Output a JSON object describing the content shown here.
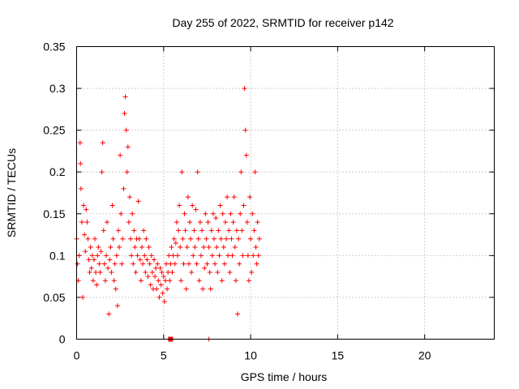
{
  "chart_data": {
    "type": "scatter",
    "title": "Day 255 of 2022, SRMTID for receiver p142",
    "xlabel": "GPS time / hours",
    "ylabel": "SRMTID / TECUs",
    "xlim": [
      0,
      24
    ],
    "ylim": [
      0,
      0.35
    ],
    "xticks": [
      0,
      5,
      10,
      15,
      20
    ],
    "xtick_labels": [
      "0",
      "5",
      "10",
      "15",
      "20"
    ],
    "yticks": [
      0,
      0.05,
      0.1,
      0.15,
      0.2,
      0.25,
      0.3,
      0.35
    ],
    "ytick_labels": [
      "0",
      "0.05",
      "0.1",
      "0.15",
      "0.2",
      "0.25",
      "0.3",
      "0.35"
    ],
    "grid": true,
    "marker": "plus",
    "color": "#ff0000",
    "series": [
      {
        "name": "SRMTID",
        "points": [
          [
            0.0,
            0.12
          ],
          [
            0.05,
            0.09
          ],
          [
            0.1,
            0.07
          ],
          [
            0.15,
            0.1
          ],
          [
            0.2,
            0.235
          ],
          [
            0.22,
            0.21
          ],
          [
            0.25,
            0.18
          ],
          [
            0.3,
            0.14
          ],
          [
            0.35,
            0.05
          ],
          [
            0.4,
            0.16
          ],
          [
            0.45,
            0.125
          ],
          [
            0.5,
            0.105
          ],
          [
            0.55,
            0.155
          ],
          [
            0.6,
            0.14
          ],
          [
            0.65,
            0.12
          ],
          [
            0.7,
            0.095
          ],
          [
            0.75,
            0.08
          ],
          [
            0.8,
            0.11
          ],
          [
            0.85,
            0.085
          ],
          [
            0.9,
            0.1
          ],
          [
            0.95,
            0.07
          ],
          [
            1.0,
            0.095
          ],
          [
            1.05,
            0.12
          ],
          [
            1.1,
            0.08
          ],
          [
            1.15,
            0.065
          ],
          [
            1.2,
            0.1
          ],
          [
            1.25,
            0.11
          ],
          [
            1.3,
            0.09
          ],
          [
            1.35,
            0.08
          ],
          [
            1.4,
            0.105
          ],
          [
            1.45,
            0.2
          ],
          [
            1.5,
            0.235
          ],
          [
            1.55,
            0.13
          ],
          [
            1.6,
            0.09
          ],
          [
            1.65,
            0.07
          ],
          [
            1.7,
            0.1
          ],
          [
            1.75,
            0.14
          ],
          [
            1.8,
            0.085
          ],
          [
            1.85,
            0.03
          ],
          [
            1.9,
            0.095
          ],
          [
            1.95,
            0.11
          ],
          [
            2.0,
            0.08
          ],
          [
            2.05,
            0.16
          ],
          [
            2.1,
            0.12
          ],
          [
            2.15,
            0.07
          ],
          [
            2.2,
            0.09
          ],
          [
            2.25,
            0.06
          ],
          [
            2.3,
            0.1
          ],
          [
            2.35,
            0.04
          ],
          [
            2.4,
            0.13
          ],
          [
            2.45,
            0.11
          ],
          [
            2.5,
            0.22
          ],
          [
            2.55,
            0.15
          ],
          [
            2.6,
            0.09
          ],
          [
            2.65,
            0.12
          ],
          [
            2.7,
            0.18
          ],
          [
            2.75,
            0.27
          ],
          [
            2.8,
            0.29
          ],
          [
            2.85,
            0.25
          ],
          [
            2.9,
            0.2
          ],
          [
            2.95,
            0.23
          ],
          [
            3.0,
            0.14
          ],
          [
            3.05,
            0.17
          ],
          [
            3.1,
            0.12
          ],
          [
            3.15,
            0.1
          ],
          [
            3.2,
            0.15
          ],
          [
            3.25,
            0.09
          ],
          [
            3.3,
            0.13
          ],
          [
            3.35,
            0.11
          ],
          [
            3.4,
            0.08
          ],
          [
            3.45,
            0.12
          ],
          [
            3.5,
            0.1
          ],
          [
            3.55,
            0.165
          ],
          [
            3.6,
            0.12
          ],
          [
            3.65,
            0.095
          ],
          [
            3.7,
            0.07
          ],
          [
            3.75,
            0.11
          ],
          [
            3.8,
            0.09
          ],
          [
            3.85,
            0.13
          ],
          [
            3.9,
            0.1
          ],
          [
            3.95,
            0.08
          ],
          [
            4.0,
            0.12
          ],
          [
            4.05,
            0.095
          ],
          [
            4.1,
            0.075
          ],
          [
            4.15,
            0.11
          ],
          [
            4.2,
            0.09
          ],
          [
            4.25,
            0.065
          ],
          [
            4.3,
            0.1
          ],
          [
            4.35,
            0.08
          ],
          [
            4.4,
            0.06
          ],
          [
            4.45,
            0.095
          ],
          [
            4.5,
            0.075
          ],
          [
            4.55,
            0.085
          ],
          [
            4.6,
            0.06
          ],
          [
            4.65,
            0.09
          ],
          [
            4.7,
            0.07
          ],
          [
            4.75,
            0.05
          ],
          [
            4.8,
            0.085
          ],
          [
            4.85,
            0.065
          ],
          [
            4.9,
            0.08
          ],
          [
            4.95,
            0.055
          ],
          [
            5.0,
            0.075
          ],
          [
            5.05,
            0.045
          ],
          [
            5.1,
            0.07
          ],
          [
            5.15,
            0.09
          ],
          [
            5.2,
            0.06
          ],
          [
            5.25,
            0.08
          ],
          [
            5.3,
            0.1
          ],
          [
            5.35,
            0.07
          ],
          [
            5.4,
            0.09
          ],
          [
            5.45,
            0.11
          ],
          [
            5.5,
            0.08
          ],
          [
            5.55,
            0.1
          ],
          [
            5.6,
            0.12
          ],
          [
            5.65,
            0.09
          ],
          [
            5.7,
            0.115
          ],
          [
            5.75,
            0.14
          ],
          [
            5.8,
            0.1
          ],
          [
            5.85,
            0.13
          ],
          [
            5.9,
            0.16
          ],
          [
            5.95,
            0.11
          ],
          [
            6.0,
            0.07
          ],
          [
            6.05,
            0.2
          ],
          [
            6.1,
            0.12
          ],
          [
            6.15,
            0.09
          ],
          [
            6.2,
            0.15
          ],
          [
            6.25,
            0.13
          ],
          [
            6.3,
            0.06
          ],
          [
            6.35,
            0.11
          ],
          [
            6.4,
            0.17
          ],
          [
            6.45,
            0.09
          ],
          [
            6.5,
            0.14
          ],
          [
            6.55,
            0.12
          ],
          [
            6.6,
            0.08
          ],
          [
            6.65,
            0.16
          ],
          [
            6.7,
            0.1
          ],
          [
            6.75,
            0.13
          ],
          [
            6.8,
            0.11
          ],
          [
            6.85,
            0.155
          ],
          [
            6.9,
            0.09
          ],
          [
            6.95,
            0.2
          ],
          [
            7.0,
            0.12
          ],
          [
            7.05,
            0.07
          ],
          [
            7.1,
            0.14
          ],
          [
            7.15,
            0.1
          ],
          [
            7.2,
            0.13
          ],
          [
            7.25,
            0.06
          ],
          [
            7.3,
            0.11
          ],
          [
            7.35,
            0.085
          ],
          [
            7.4,
            0.15
          ],
          [
            7.45,
            0.12
          ],
          [
            7.5,
            0.09
          ],
          [
            7.55,
            0.14
          ],
          [
            7.6,
            0.11
          ],
          [
            7.65,
            0.08
          ],
          [
            7.7,
            0.06
          ],
          [
            7.75,
            0.13
          ],
          [
            7.8,
            0.1
          ],
          [
            7.85,
            0.15
          ],
          [
            7.9,
            0.12
          ],
          [
            7.95,
            0.09
          ],
          [
            8.0,
            0.145
          ],
          [
            8.05,
            0.11
          ],
          [
            8.1,
            0.08
          ],
          [
            8.15,
            0.13
          ],
          [
            8.2,
            0.1
          ],
          [
            8.25,
            0.16
          ],
          [
            8.3,
            0.12
          ],
          [
            8.35,
            0.07
          ],
          [
            8.4,
            0.15
          ],
          [
            8.45,
            0.11
          ],
          [
            8.5,
            0.09
          ],
          [
            8.55,
            0.14
          ],
          [
            8.6,
            0.12
          ],
          [
            8.65,
            0.17
          ],
          [
            8.7,
            0.1
          ],
          [
            8.75,
            0.13
          ],
          [
            8.8,
            0.08
          ],
          [
            8.85,
            0.15
          ],
          [
            8.9,
            0.12
          ],
          [
            8.95,
            0.1
          ],
          [
            9.0,
            0.14
          ],
          [
            9.05,
            0.17
          ],
          [
            9.1,
            0.11
          ],
          [
            9.15,
            0.07
          ],
          [
            9.2,
            0.13
          ],
          [
            9.25,
            0.03
          ],
          [
            9.3,
            0.12
          ],
          [
            9.35,
            0.09
          ],
          [
            9.4,
            0.15
          ],
          [
            9.45,
            0.2
          ],
          [
            9.5,
            0.13
          ],
          [
            9.55,
            0.1
          ],
          [
            9.6,
            0.16
          ],
          [
            9.65,
            0.3
          ],
          [
            9.7,
            0.25
          ],
          [
            9.75,
            0.22
          ],
          [
            9.8,
            0.14
          ],
          [
            9.85,
            0.1
          ],
          [
            9.9,
            0.07
          ],
          [
            9.95,
            0.17
          ],
          [
            10.0,
            0.12
          ],
          [
            10.05,
            0.08
          ],
          [
            10.1,
            0.15
          ],
          [
            10.15,
            0.1
          ],
          [
            10.2,
            0.13
          ],
          [
            10.25,
            0.2
          ],
          [
            10.3,
            0.11
          ],
          [
            10.35,
            0.09
          ],
          [
            10.4,
            0.14
          ],
          [
            10.45,
            0.1
          ],
          [
            10.5,
            0.12
          ]
        ]
      }
    ],
    "extra_marks": [
      {
        "x": 5.4,
        "y": 0.0,
        "marker": "square"
      },
      {
        "x": 7.6,
        "y": 0.0,
        "marker": "plus"
      }
    ]
  }
}
